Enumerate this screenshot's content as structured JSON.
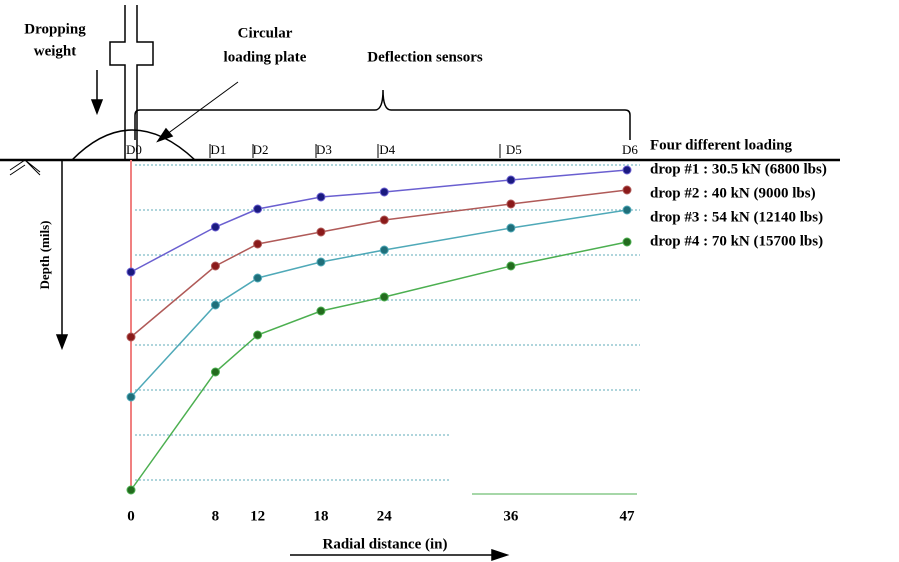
{
  "chart_data": {
    "type": "line",
    "dropping_weight": [
      "Dropping",
      "weight"
    ],
    "loading_plate": [
      "Circular",
      "loading plate"
    ],
    "sensors_title": "Deflection sensors",
    "sensor_labels": [
      "D0",
      "D1",
      "D2",
      "D3",
      "D4",
      "D5",
      "D6"
    ],
    "y_label": "Depth (mils)",
    "x_label": "Radial distance (in)",
    "legend_title": "Four different loading",
    "x": [
      0,
      8,
      12,
      18,
      24,
      36,
      47
    ],
    "xlim": [
      0,
      47
    ],
    "ylim": [
      0,
      35
    ],
    "series": [
      {
        "name": "drop #1 : 30.5 kN (6800 lbs)",
        "color": "#6a5fd0",
        "marker": "#1a1a80",
        "values": [
          11.2,
          6.7,
          4.9,
          3.7,
          3.2,
          2.0,
          1.0
        ]
      },
      {
        "name": "drop #2 : 40 kN (9000 lbs)",
        "color": "#b05a58",
        "marker": "#8a1a1a",
        "values": [
          17.7,
          10.6,
          8.4,
          7.2,
          6.0,
          4.4,
          3.0
        ]
      },
      {
        "name": "drop #3 : 54 kN (12140 lbs)",
        "color": "#4fa9b8",
        "marker": "#1f6f7a",
        "values": [
          23.7,
          14.5,
          11.8,
          10.2,
          9.0,
          6.8,
          5.0
        ]
      },
      {
        "name": "drop #4 : 70 kN (15700 lbs)",
        "color": "#4caf50",
        "marker": "#236b1e",
        "values": [
          33.0,
          21.2,
          17.5,
          15.1,
          13.7,
          10.6,
          8.2
        ]
      }
    ]
  }
}
